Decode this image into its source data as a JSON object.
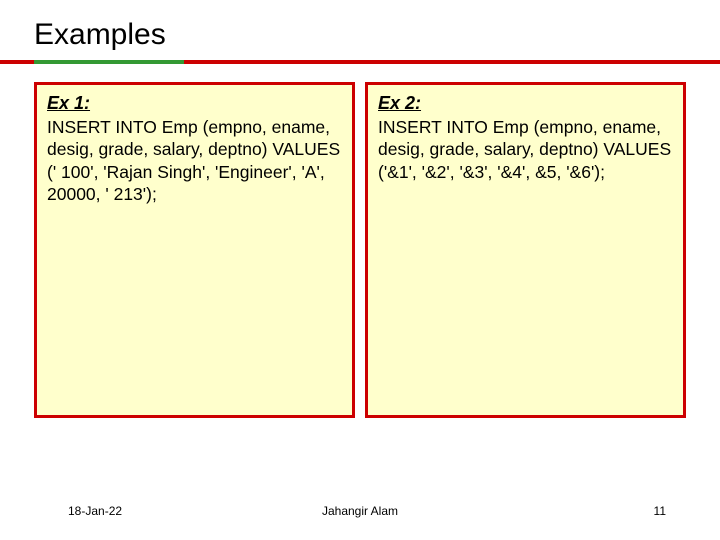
{
  "title": "Examples",
  "examples": [
    {
      "heading": "Ex 1:",
      "body": "INSERT INTO Emp (empno, ename, desig, grade, salary, deptno) VALUES (' 100', 'Rajan Singh', 'Engineer', 'A', 20000, ' 213');"
    },
    {
      "heading": "Ex 2:",
      "body": "INSERT INTO Emp (empno, ename, desig, grade, salary, deptno) VALUES ('&1', '&2', '&3', '&4', &5, '&6');"
    }
  ],
  "footer": {
    "date": "18-Jan-22",
    "author": "Jahangir Alam",
    "page": "11"
  },
  "colors": {
    "rule_red": "#cc0000",
    "rule_green": "#339933",
    "box_border": "#cc0000",
    "box_bg": "#ffffcc"
  }
}
